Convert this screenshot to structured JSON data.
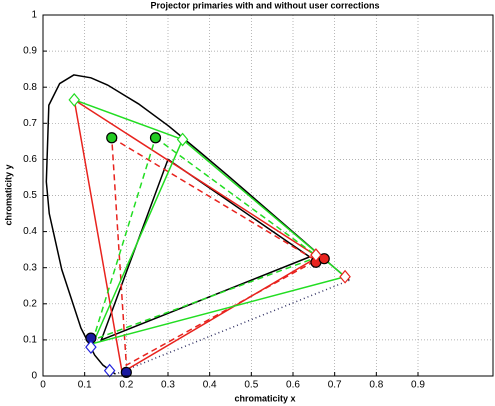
{
  "chart_data": {
    "type": "line",
    "title": "Projector primaries with and without user corrections",
    "xlabel": "chromaticity x",
    "ylabel": "chromaticity y",
    "xlim": [
      0,
      1.08
    ],
    "ylim": [
      0,
      1
    ],
    "xticks": [
      0,
      0.1,
      0.2,
      0.3,
      0.4,
      0.5,
      0.6,
      0.7,
      0.8,
      0.9
    ],
    "yticks": [
      0,
      0.1,
      0.2,
      0.3,
      0.4,
      0.5,
      0.6,
      0.7,
      0.8,
      0.9,
      1
    ],
    "grid": true,
    "series": [
      {
        "color": "#000000",
        "style": "solid",
        "x": [
          0.174,
          0.144,
          0.124,
          0.091,
          0.045,
          0.015,
          0.008,
          0.014,
          0.04,
          0.074,
          0.115,
          0.155,
          0.229,
          0.302,
          0.373,
          0.444,
          0.512,
          0.575,
          0.627,
          0.665,
          0.735
        ],
        "y": [
          0.005,
          0.03,
          0.058,
          0.133,
          0.295,
          0.45,
          0.538,
          0.75,
          0.81,
          0.834,
          0.826,
          0.806,
          0.754,
          0.692,
          0.624,
          0.555,
          0.487,
          0.424,
          0.372,
          0.334,
          0.265
        ]
      },
      {
        "color": "#333366",
        "style": "dotted",
        "x": [
          0.735,
          0.174
        ],
        "y": [
          0.265,
          0.005
        ]
      },
      {
        "color": "#000000",
        "style": "solid",
        "x": [
          0.64,
          0.3,
          0.14,
          0.64
        ],
        "y": [
          0.33,
          0.6,
          0.1,
          0.33
        ]
      },
      {
        "color": "#e8231e",
        "style": "solid",
        "x": [
          0.075,
          0.66,
          0.19,
          0.075
        ],
        "y": [
          0.765,
          0.33,
          0.01,
          0.765
        ]
      },
      {
        "color": "#e8231e",
        "style": "dashed",
        "x": [
          0.165,
          0.655,
          0.2,
          0.165
        ],
        "y": [
          0.66,
          0.32,
          0.03,
          0.66
        ]
      },
      {
        "color": "#22dd22",
        "style": "solid",
        "x": [
          0.335,
          0.725,
          0.12,
          0.335
        ],
        "y": [
          0.655,
          0.275,
          0.09,
          0.655
        ]
      },
      {
        "color": "#22dd22",
        "style": "dashed",
        "x": [
          0.27,
          0.66,
          0.12,
          0.27
        ],
        "y": [
          0.66,
          0.33,
          0.1,
          0.66
        ]
      },
      {
        "color": "#22dd22",
        "style": "solid",
        "x": [
          0.075,
          0.335
        ],
        "y": [
          0.765,
          0.655
        ]
      },
      {
        "color": "#000000",
        "fill": "#22cc22",
        "marker": "circle",
        "x": [
          0.165,
          0.27
        ],
        "y": [
          0.66,
          0.66
        ]
      },
      {
        "color": "#000000",
        "fill": "#e8231e",
        "marker": "circle",
        "x": [
          0.655,
          0.675
        ],
        "y": [
          0.315,
          0.325
        ]
      },
      {
        "color": "#000000",
        "fill": "#1a1aa0",
        "marker": "circle",
        "x": [
          0.115,
          0.2
        ],
        "y": [
          0.105,
          0.01
        ]
      },
      {
        "color": "#22dd22",
        "fill": "#ffffff",
        "marker": "diamond",
        "x": [
          0.075,
          0.335
        ],
        "y": [
          0.765,
          0.655
        ]
      },
      {
        "color": "#e8231e",
        "fill": "#ffffff",
        "marker": "diamond",
        "x": [
          0.655,
          0.725
        ],
        "y": [
          0.335,
          0.275
        ]
      },
      {
        "color": "#2222dd",
        "fill": "#ffffff",
        "marker": "diamond",
        "x": [
          0.115,
          0.16
        ],
        "y": [
          0.08,
          0.015
        ]
      }
    ]
  }
}
